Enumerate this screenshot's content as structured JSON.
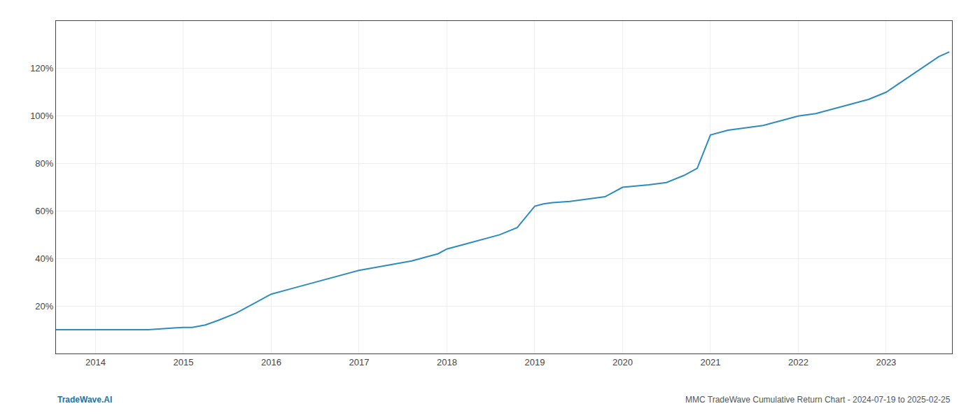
{
  "chart_data": {
    "type": "line",
    "x": [
      2013.55,
      2014.0,
      2014.3,
      2014.6,
      2015.0,
      2015.1,
      2015.25,
      2015.4,
      2015.6,
      2015.8,
      2016.0,
      2016.2,
      2016.5,
      2016.8,
      2017.0,
      2017.3,
      2017.6,
      2017.9,
      2018.0,
      2018.2,
      2018.4,
      2018.6,
      2018.8,
      2019.0,
      2019.1,
      2019.2,
      2019.4,
      2019.6,
      2019.8,
      2020.0,
      2020.15,
      2020.3,
      2020.5,
      2020.7,
      2020.85,
      2021.0,
      2021.2,
      2021.4,
      2021.6,
      2021.8,
      2022.0,
      2022.2,
      2022.4,
      2022.6,
      2022.8,
      2023.0,
      2023.2,
      2023.4,
      2023.6,
      2023.72
    ],
    "values": [
      10,
      10,
      10,
      10,
      11,
      11,
      12,
      14,
      17,
      21,
      25,
      27,
      30,
      33,
      35,
      37,
      39,
      42,
      44,
      46,
      48,
      50,
      53,
      62,
      63,
      63.5,
      64,
      65,
      66,
      70,
      70.5,
      71,
      72,
      75,
      78,
      92,
      94,
      95,
      96,
      98,
      100,
      101,
      103,
      105,
      107,
      110,
      115,
      120,
      125,
      127
    ],
    "color": "#2d8bbf",
    "xlim": [
      2013.55,
      2023.75
    ],
    "xticks": [
      2014,
      2015,
      2016,
      2017,
      2018,
      2019,
      2020,
      2021,
      2022,
      2023
    ],
    "ylim": [
      0,
      140
    ],
    "yticks": [
      {
        "value": 20,
        "label": "20%"
      },
      {
        "value": 40,
        "label": "40%"
      },
      {
        "value": 60,
        "label": "60%"
      },
      {
        "value": 80,
        "label": "80%"
      },
      {
        "value": 100,
        "label": "100%"
      },
      {
        "value": 120,
        "label": "120%"
      }
    ],
    "grid": true,
    "annotations": [
      {
        "text": "TradeWave.AI",
        "color": "#2472a4"
      },
      {
        "text": "MMC TradeWave Cumulative Return Chart - 2024-07-19 to 2025-02-25",
        "color": "#555555"
      }
    ]
  }
}
